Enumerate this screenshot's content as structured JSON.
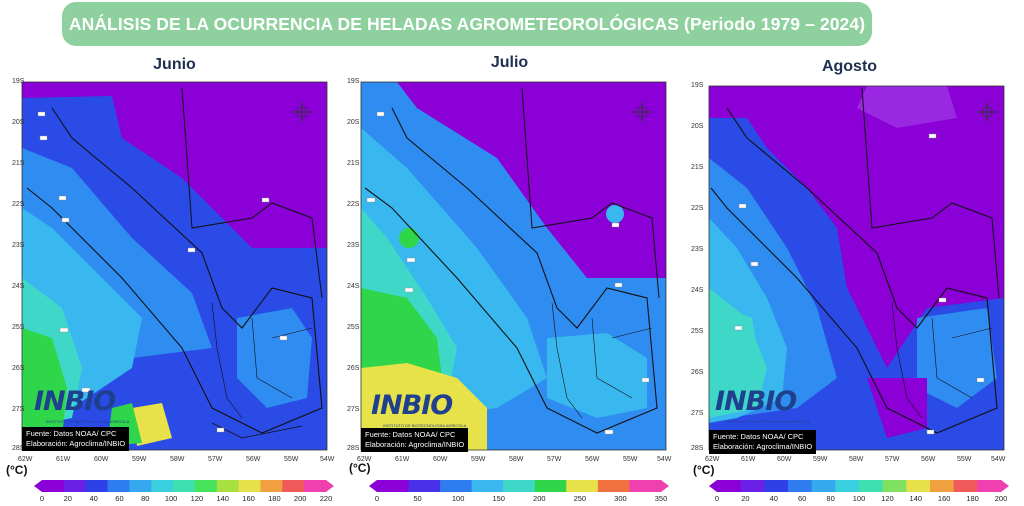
{
  "header": {
    "title": "ANÁLISIS DE LA OCURRENCIA DE HELADAS AGROMETEOROLÓGICAS (Periodo 1979 – 2024)"
  },
  "lat_labels": [
    "19S",
    "20S",
    "21S",
    "22S",
    "23S",
    "24S",
    "25S",
    "26S",
    "27S",
    "28S"
  ],
  "lon_labels": [
    "62W",
    "61W",
    "60W",
    "59W",
    "58W",
    "57W",
    "56W",
    "55W",
    "54W"
  ],
  "logo": {
    "text": "INBIO",
    "subtitle": "INSTITUTO DE BIOTECNOLOGÍA AGRÍCOLA"
  },
  "source": {
    "line1": "Fuente: Datos NOAA/ CPC",
    "line2": "Elaboración: Agroclima/INBIO"
  },
  "unit": "(°C)",
  "colors": {
    "violet": "#8a00d6",
    "blue_dark": "#2a4be6",
    "blue": "#2f8cf0",
    "cyan": "#38b8ee",
    "teal": "#3fd8c8",
    "green": "#2fd64a",
    "yellow": "#e7e24a"
  },
  "panels": [
    {
      "month": "Junio",
      "ticks": [
        "0",
        "20",
        "40",
        "60",
        "80",
        "100",
        "120",
        "140",
        "160",
        "180",
        "200",
        "220"
      ],
      "colorbar": [
        "#8a00d6",
        "#6a20e6",
        "#3040e8",
        "#2f7cf0",
        "#35a8ee",
        "#3ad0e0",
        "#3fe0b0",
        "#46e25a",
        "#a8e040",
        "#e6e04a",
        "#f0a040",
        "#f05a5a",
        "#f040b0"
      ]
    },
    {
      "month": "Julio",
      "ticks": [
        "0",
        "50",
        "100",
        "150",
        "200",
        "250",
        "300",
        "350"
      ],
      "colorbar": [
        "#8a00d6",
        "#4a30e8",
        "#2f7cf0",
        "#38b8ee",
        "#3fd8c8",
        "#2fd64a",
        "#e7e24a",
        "#f07040",
        "#f040b0"
      ]
    },
    {
      "month": "Agosto",
      "ticks": [
        "0",
        "20",
        "40",
        "60",
        "80",
        "100",
        "120",
        "140",
        "160",
        "180",
        "200"
      ],
      "colorbar": [
        "#8a00d6",
        "#6a20e6",
        "#3040e8",
        "#2f7cf0",
        "#35a8ee",
        "#3ad0e0",
        "#3fe0b0",
        "#80e060",
        "#e6e04a",
        "#f0a040",
        "#f05a5a",
        "#f040b0"
      ]
    }
  ]
}
